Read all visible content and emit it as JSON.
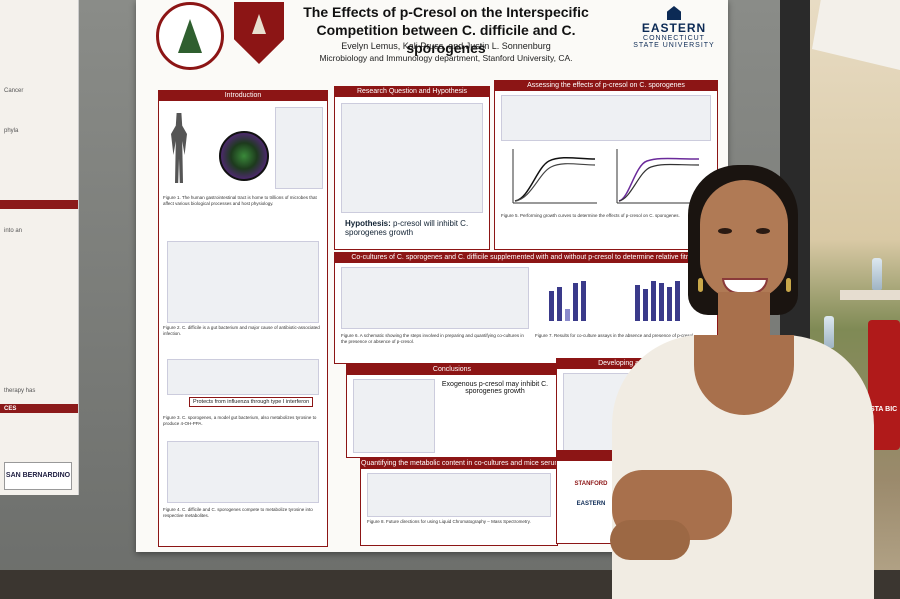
{
  "side_poster": {
    "lines": [
      "Cancer",
      "phyla",
      "into an",
      "therapy has",
      "CES"
    ],
    "logo": "SAN BERNARDINO"
  },
  "poster": {
    "title": "The Effects of p-Cresol on the Interspecific Competition between C. difficile and C. sporogenes",
    "authors": "Evelyn Lemus, Kali Pruss, and Justin L. Sonnenburg",
    "affiliation": "Microbiology and Immunology department, Stanford University, CA.",
    "institution_logo": {
      "line1": "EASTERN",
      "line2": "CONNECTICUT",
      "line3": "STATE UNIVERSITY"
    },
    "panels": {
      "introduction": "Introduction",
      "research_question": "Research Question and Hypothesis",
      "assessing": "Assessing the effects of p-cresol on C. sporogenes",
      "cocultures": "Co-cultures of C. sporogenes and C. difficile supplemented with and without p-cresol to determine relative fitness",
      "conclusions": "Conclusions",
      "developing": "Developing a minimally d",
      "quantifying": "Quantifying the metabolic content in co-cultures and mice serum using LC-MS",
      "acknowledgements": "Acknowledgem"
    },
    "hypothesis_label": "Hypothesis:",
    "hypothesis_text": "p-cresol will inhibit C. sporogenes growth",
    "conclusion_text": "Exogenous p-cresol may inhibit C. sporogenes growth",
    "protects_text": "Protects from influenza through type I interferon",
    "fig_captions": {
      "fig1": "Figure 1. The human gastrointestinal tract is home to trillions of microbes that affect various biological processes and host physiology.",
      "fig2": "Figure 2. C. difficile is a gut bacterium and major cause of antibiotic-associated infection.",
      "fig3": "Figure 3. C. sporogenes, a model gut bacterium, also metabolizes tyrosine to produce 4-OH-PPA.",
      "fig4": "Figure 4. C. difficile and C. sporogenes compete to metabolize tyrosine into respective metabolites.",
      "fig5": "Figure 5. Performing growth curves to determine the effects of p-cresol on C. sporogenes.",
      "fig6": "Figure 6. A schematic showing the steps involved in preparing and quantifying co-cultures in the presence or absence of p-cresol.",
      "fig7": "Figure 7. Results for co-culture assays in the absence and presence of p-cresol.",
      "fig8": "Figure 8. Future directions for using Liquid Chromatography – Mass Spectrometry."
    },
    "ack_logos": [
      "STANFORD",
      "EASTERN"
    ]
  },
  "background": {
    "cup_label": "STA BIC"
  },
  "colors": {
    "stanford_cardinal": "#8c1515",
    "eastern_blue": "#0c2a55",
    "poster_bg": "#fbfaf7"
  }
}
